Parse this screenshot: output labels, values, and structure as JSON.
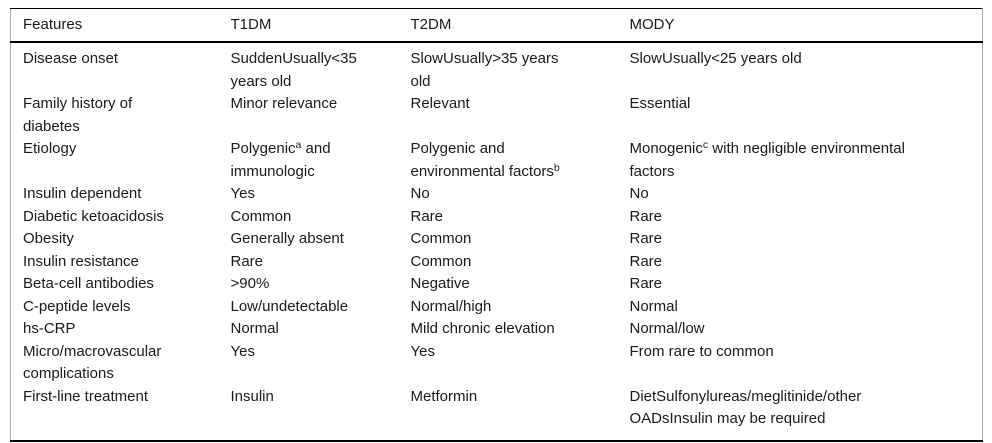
{
  "colors": {
    "text": "#1a1a1a",
    "rule": "#000000",
    "side_border": "#ababab",
    "background": "#ffffff"
  },
  "table": {
    "columns": [
      "Features",
      "T1DM",
      "T2DM",
      "MODY"
    ],
    "rows": [
      {
        "cells": [
          "Disease onset",
          "SuddenUsually<35\nyears old",
          "SlowUsually>35 years\nold",
          "SlowUsually<25 years old"
        ]
      },
      {
        "cells": [
          "Family history of\ndiabetes",
          "Minor relevance",
          "Relevant",
          "Essential"
        ]
      },
      {
        "cells": [
          "Etiology",
          "Polygenic^a^ and\nimmunologic",
          "Polygenic and\nenvironmental factors^b^",
          "Monogenic^c^ with negligible environmental\nfactors"
        ]
      },
      {
        "cells": [
          "Insulin dependent",
          "Yes",
          "No",
          "No"
        ]
      },
      {
        "cells": [
          "Diabetic ketoacidosis",
          "Common",
          "Rare",
          "Rare"
        ]
      },
      {
        "cells": [
          "Obesity",
          "Generally absent",
          "Common",
          "Rare"
        ]
      },
      {
        "cells": [
          "Insulin resistance",
          "Rare",
          "Common",
          "Rare"
        ]
      },
      {
        "cells": [
          "Beta-cell antibodies",
          ">90%",
          "Negative",
          "Rare"
        ]
      },
      {
        "cells": [
          "C-peptide levels",
          "Low/undetectable",
          "Normal/high",
          "Normal"
        ]
      },
      {
        "cells": [
          "hs-CRP",
          "Normal",
          "Mild chronic elevation",
          "Normal/low"
        ]
      },
      {
        "cells": [
          "Micro/macrovascular\ncomplications",
          "Yes",
          "Yes",
          "From rare to common"
        ]
      },
      {
        "cells": [
          "First-line treatment",
          "Insulin",
          "Metformin",
          "DietSulfonylureas/meglitinide/other\nOADsInsulin may be required"
        ]
      }
    ]
  }
}
